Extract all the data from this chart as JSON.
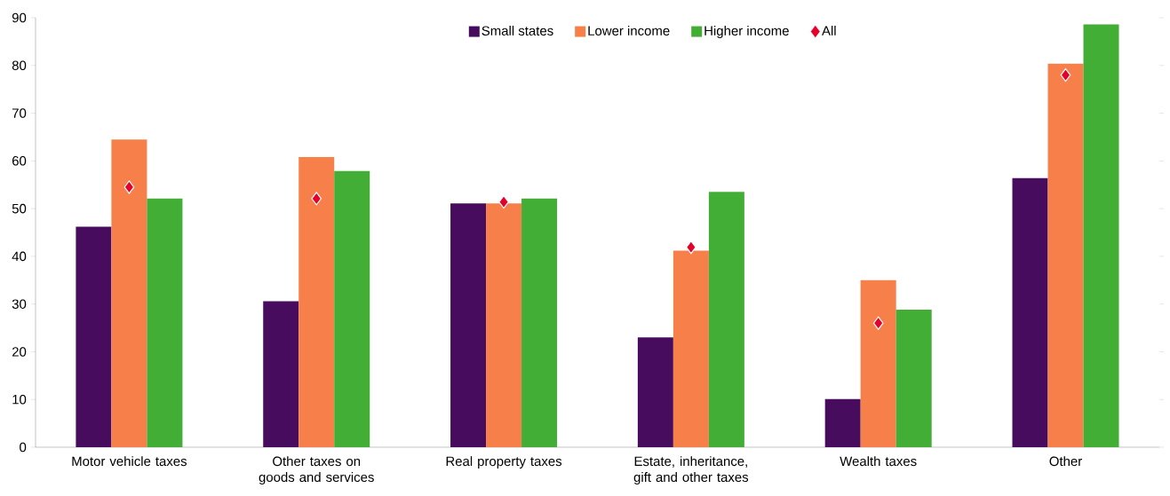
{
  "chart_data": {
    "type": "bar",
    "categories": [
      "Motor vehicle taxes",
      "Other taxes on goods and services",
      "Real property taxes",
      "Estate, inheritance, gift and other taxes",
      "Wealth taxes",
      "Other"
    ],
    "series": [
      {
        "name": "Small states",
        "color": "#470c5e",
        "values": [
          46.2,
          30.6,
          51.1,
          23.0,
          10.1,
          56.4
        ]
      },
      {
        "name": "Lower income",
        "color": "#f77f4a",
        "values": [
          64.5,
          60.8,
          51.1,
          41.2,
          35.0,
          80.4
        ]
      },
      {
        "name": "Higher income",
        "color": "#43ae35",
        "values": [
          52.1,
          57.9,
          52.1,
          53.5,
          28.8,
          88.6
        ]
      },
      {
        "name": "All",
        "type": "scatter",
        "marker": "diamond",
        "color": "#e4002b",
        "x": [
          "Motor vehicle taxes",
          "Other taxes on goods and services",
          "Real property taxes",
          "Estate, inheritance, gift and other taxes",
          "Wealth taxes",
          "Other"
        ],
        "values": [
          54.5,
          52.1,
          51.4,
          41.9,
          26.0,
          78.0
        ]
      }
    ],
    "ylim": [
      0,
      90
    ],
    "yticks": [
      0,
      10,
      20,
      30,
      40,
      50,
      60,
      70,
      80,
      90
    ],
    "legend": "top",
    "grid": false
  }
}
